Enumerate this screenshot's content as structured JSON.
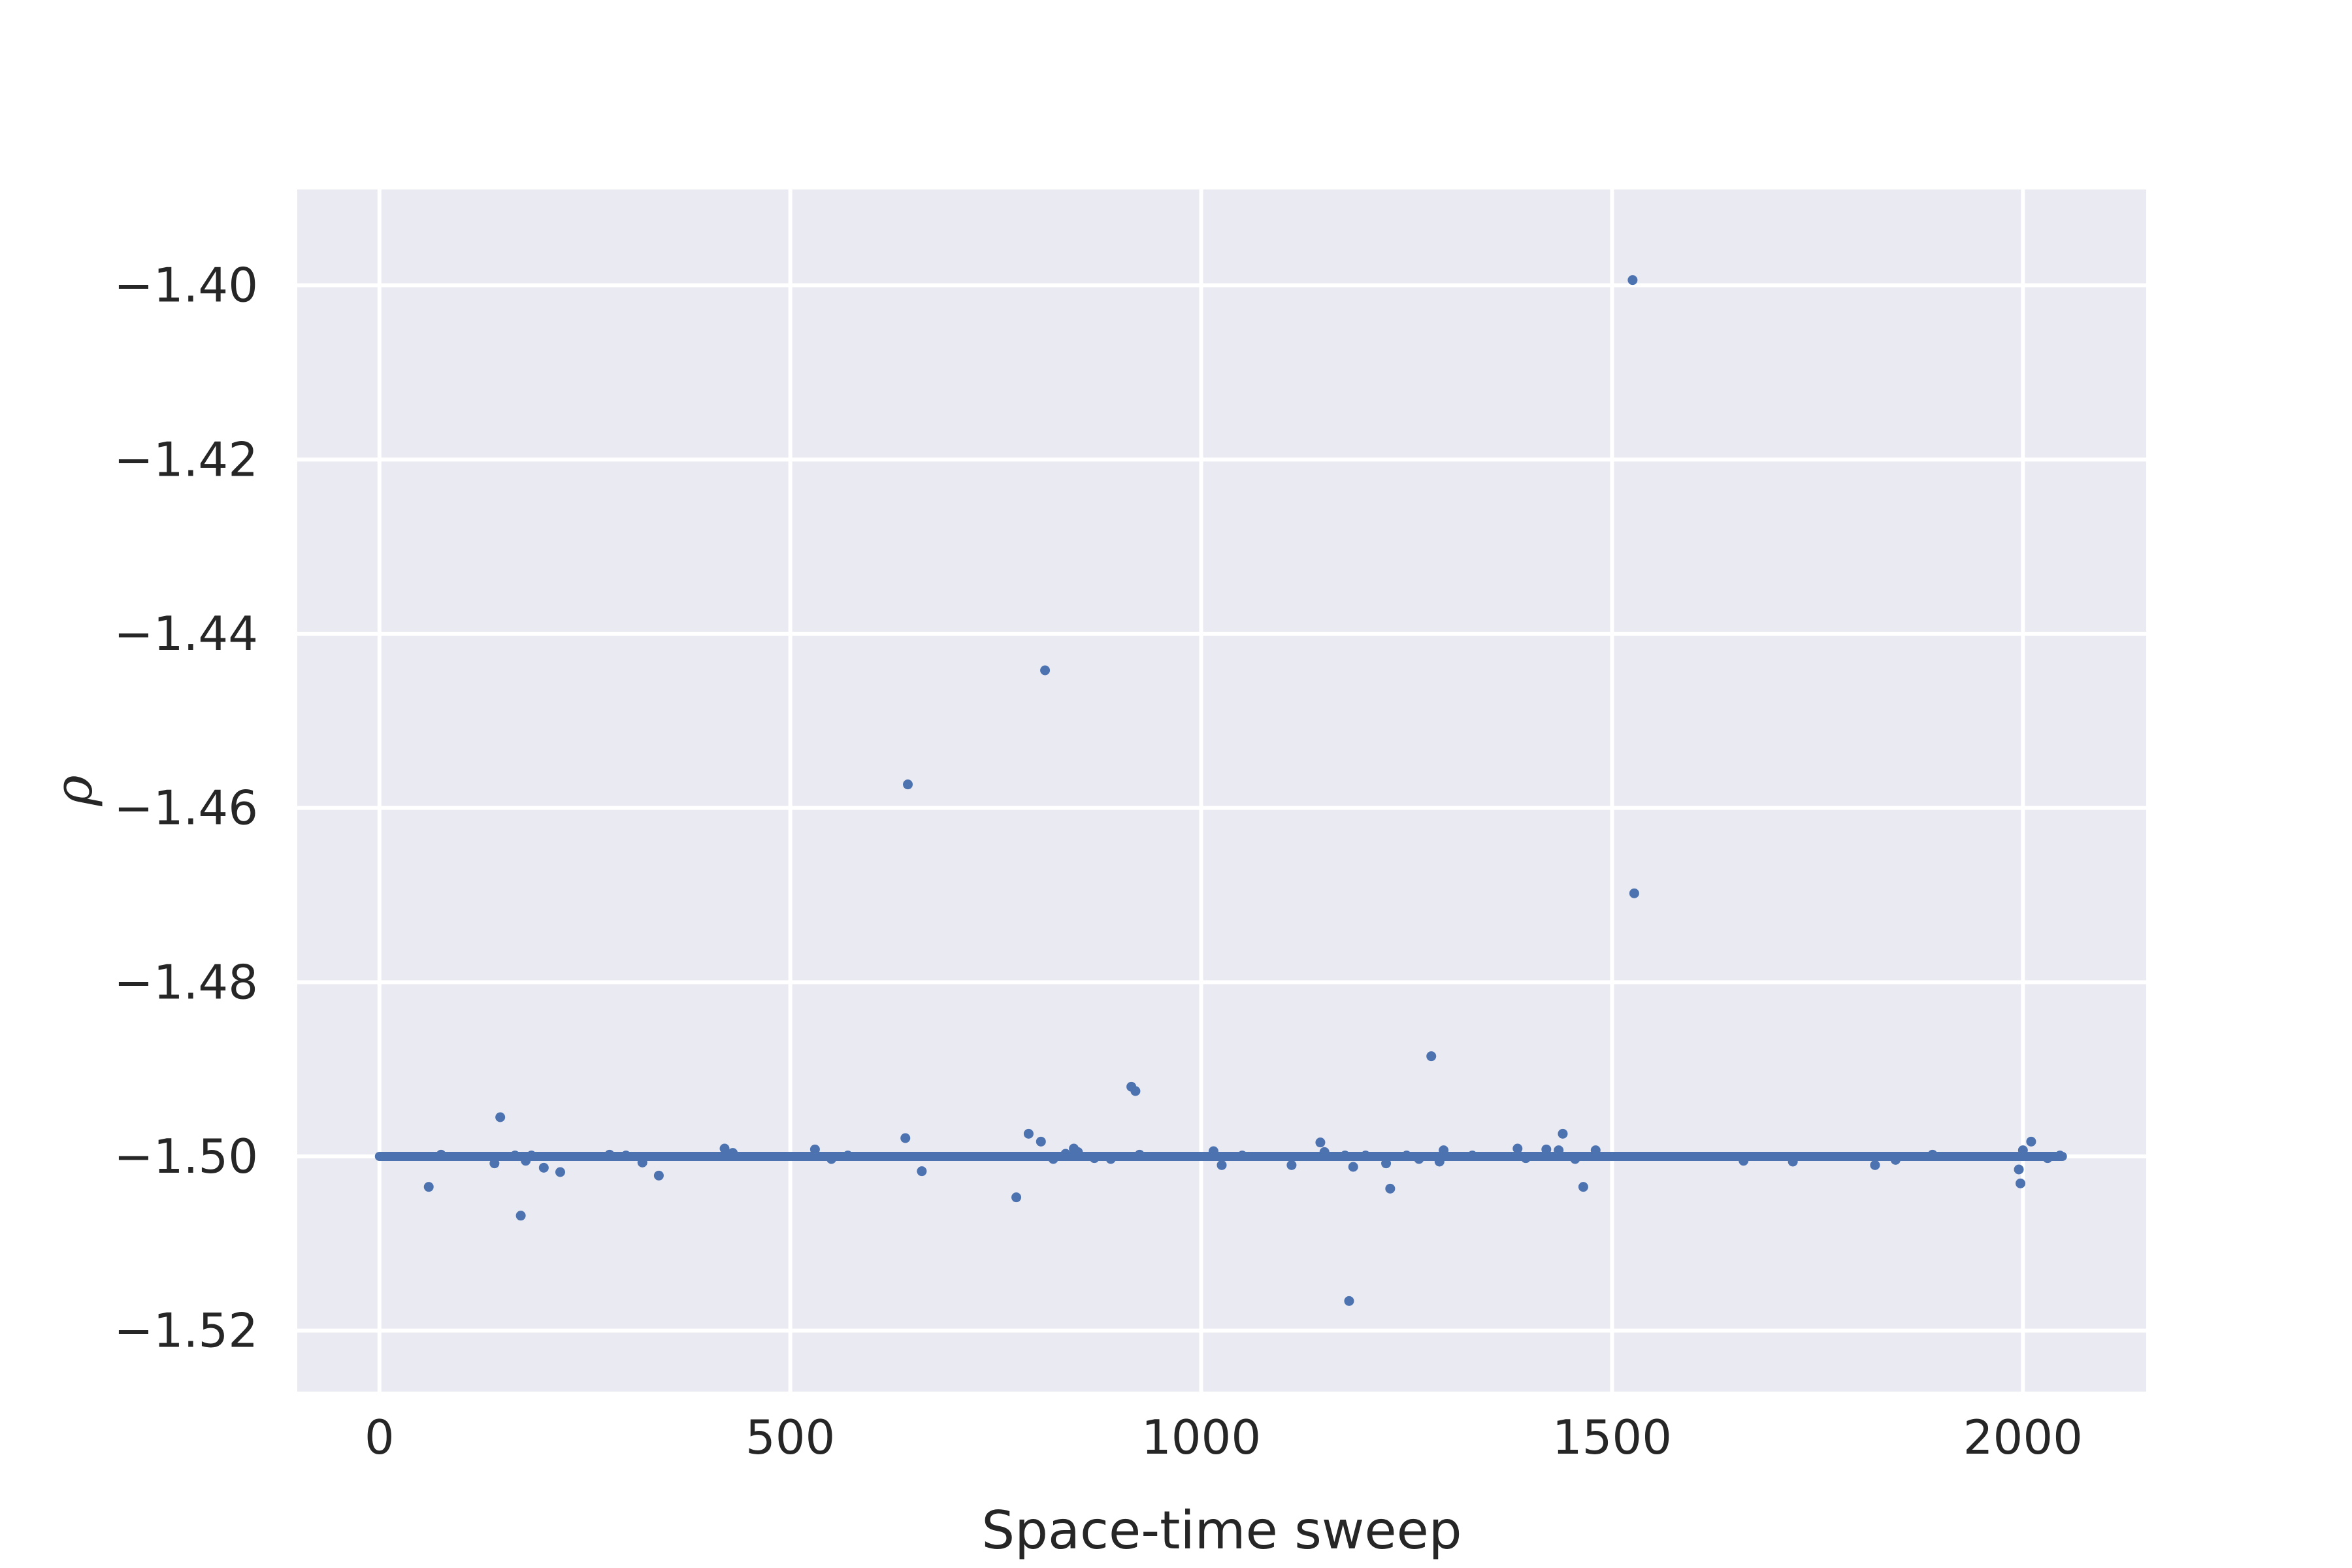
{
  "chart_data": {
    "type": "scatter",
    "title": "",
    "xlabel": "Space-time sweep",
    "ylabel": "ρ",
    "xlim": [
      -100,
      2150
    ],
    "ylim": [
      -1.527,
      -1.389
    ],
    "xticks": [
      0,
      500,
      1000,
      1500,
      2000
    ],
    "xtick_labels": [
      "0",
      "500",
      "1000",
      "1500",
      "2000"
    ],
    "yticks": [
      -1.52,
      -1.5,
      -1.48,
      -1.46,
      -1.44,
      -1.42,
      -1.4
    ],
    "ytick_labels": [
      "−1.52",
      "−1.50",
      "−1.48",
      "−1.46",
      "−1.44",
      "−1.42",
      "−1.40"
    ],
    "grid": true,
    "colors": {
      "points": "#4c72b0",
      "axes_bg": "#eaeaf2",
      "grid": "#ffffff",
      "text": "#262626"
    },
    "baseline": {
      "y": -1.5,
      "x_start": 0,
      "x_end": 2048
    },
    "series": [
      {
        "values_note": "",
        "points": [
          [
            60,
            -1.5035
          ],
          [
            75,
            -1.4998
          ],
          [
            140,
            -1.5008
          ],
          [
            147,
            -1.4955
          ],
          [
            165,
            -1.4999
          ],
          [
            172,
            -1.5068
          ],
          [
            178,
            -1.5005
          ],
          [
            185,
            -1.4999
          ],
          [
            200,
            -1.5013
          ],
          [
            220,
            -1.5018
          ],
          [
            280,
            -1.4998
          ],
          [
            300,
            -1.4999
          ],
          [
            320,
            -1.5007
          ],
          [
            340,
            -1.5022
          ],
          [
            420,
            -1.4991
          ],
          [
            430,
            -1.4996
          ],
          [
            530,
            -1.4992
          ],
          [
            550,
            -1.5003
          ],
          [
            570,
            -1.4999
          ],
          [
            640,
            -1.4979
          ],
          [
            643,
            -1.4573
          ],
          [
            660,
            -1.5017
          ],
          [
            775,
            -1.5047
          ],
          [
            790,
            -1.4974
          ],
          [
            805,
            -1.4983
          ],
          [
            810,
            -1.4442
          ],
          [
            820,
            -1.5003
          ],
          [
            835,
            -1.4997
          ],
          [
            845,
            -1.4991
          ],
          [
            850,
            -1.4995
          ],
          [
            870,
            -1.5002
          ],
          [
            890,
            -1.5003
          ],
          [
            915,
            -1.492
          ],
          [
            920,
            -1.4925
          ],
          [
            925,
            -1.4998
          ],
          [
            1015,
            -1.4994
          ],
          [
            1025,
            -1.501
          ],
          [
            1050,
            -1.4999
          ],
          [
            1110,
            -1.501
          ],
          [
            1145,
            -1.4984
          ],
          [
            1150,
            -1.4995
          ],
          [
            1175,
            -1.4999
          ],
          [
            1180,
            -1.5166
          ],
          [
            1185,
            -1.5012
          ],
          [
            1200,
            -1.4999
          ],
          [
            1225,
            -1.5008
          ],
          [
            1230,
            -1.5037
          ],
          [
            1250,
            -1.4999
          ],
          [
            1265,
            -1.5003
          ],
          [
            1280,
            -1.4885
          ],
          [
            1290,
            -1.5006
          ],
          [
            1295,
            -1.4993
          ],
          [
            1330,
            -1.4999
          ],
          [
            1385,
            -1.4991
          ],
          [
            1395,
            -1.5002
          ],
          [
            1420,
            -1.4992
          ],
          [
            1435,
            -1.4993
          ],
          [
            1440,
            -1.4974
          ],
          [
            1455,
            -1.5003
          ],
          [
            1465,
            -1.5035
          ],
          [
            1480,
            -1.4993
          ],
          [
            1525,
            -1.3994
          ],
          [
            1527,
            -1.4698
          ],
          [
            1660,
            -1.5005
          ],
          [
            1720,
            -1.5006
          ],
          [
            1820,
            -1.501
          ],
          [
            1845,
            -1.5004
          ],
          [
            1890,
            -1.4998
          ],
          [
            1995,
            -1.5015
          ],
          [
            1997,
            -1.5031
          ],
          [
            2000,
            -1.4993
          ],
          [
            2010,
            -1.4983
          ],
          [
            2030,
            -1.5002
          ],
          [
            2045,
            -1.4999
          ]
        ]
      }
    ]
  }
}
